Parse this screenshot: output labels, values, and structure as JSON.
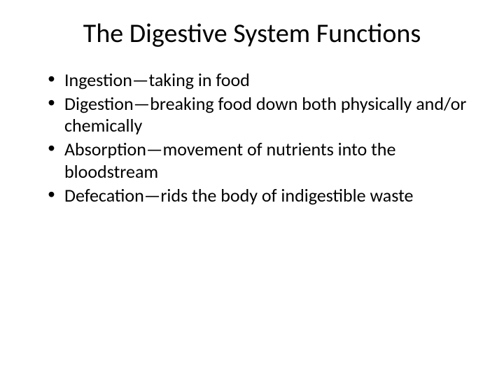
{
  "slide": {
    "title": "The Digestive System Functions",
    "title_fontsize": 38,
    "body_fontsize": 26,
    "text_color": "#000000",
    "background_color": "#ffffff",
    "bullets": [
      "Ingestion—taking in food",
      "Digestion—breaking food down both physically and/or chemically",
      "Absorption—movement of nutrients into the bloodstream",
      "Defecation—rids the body of indigestible waste"
    ]
  }
}
